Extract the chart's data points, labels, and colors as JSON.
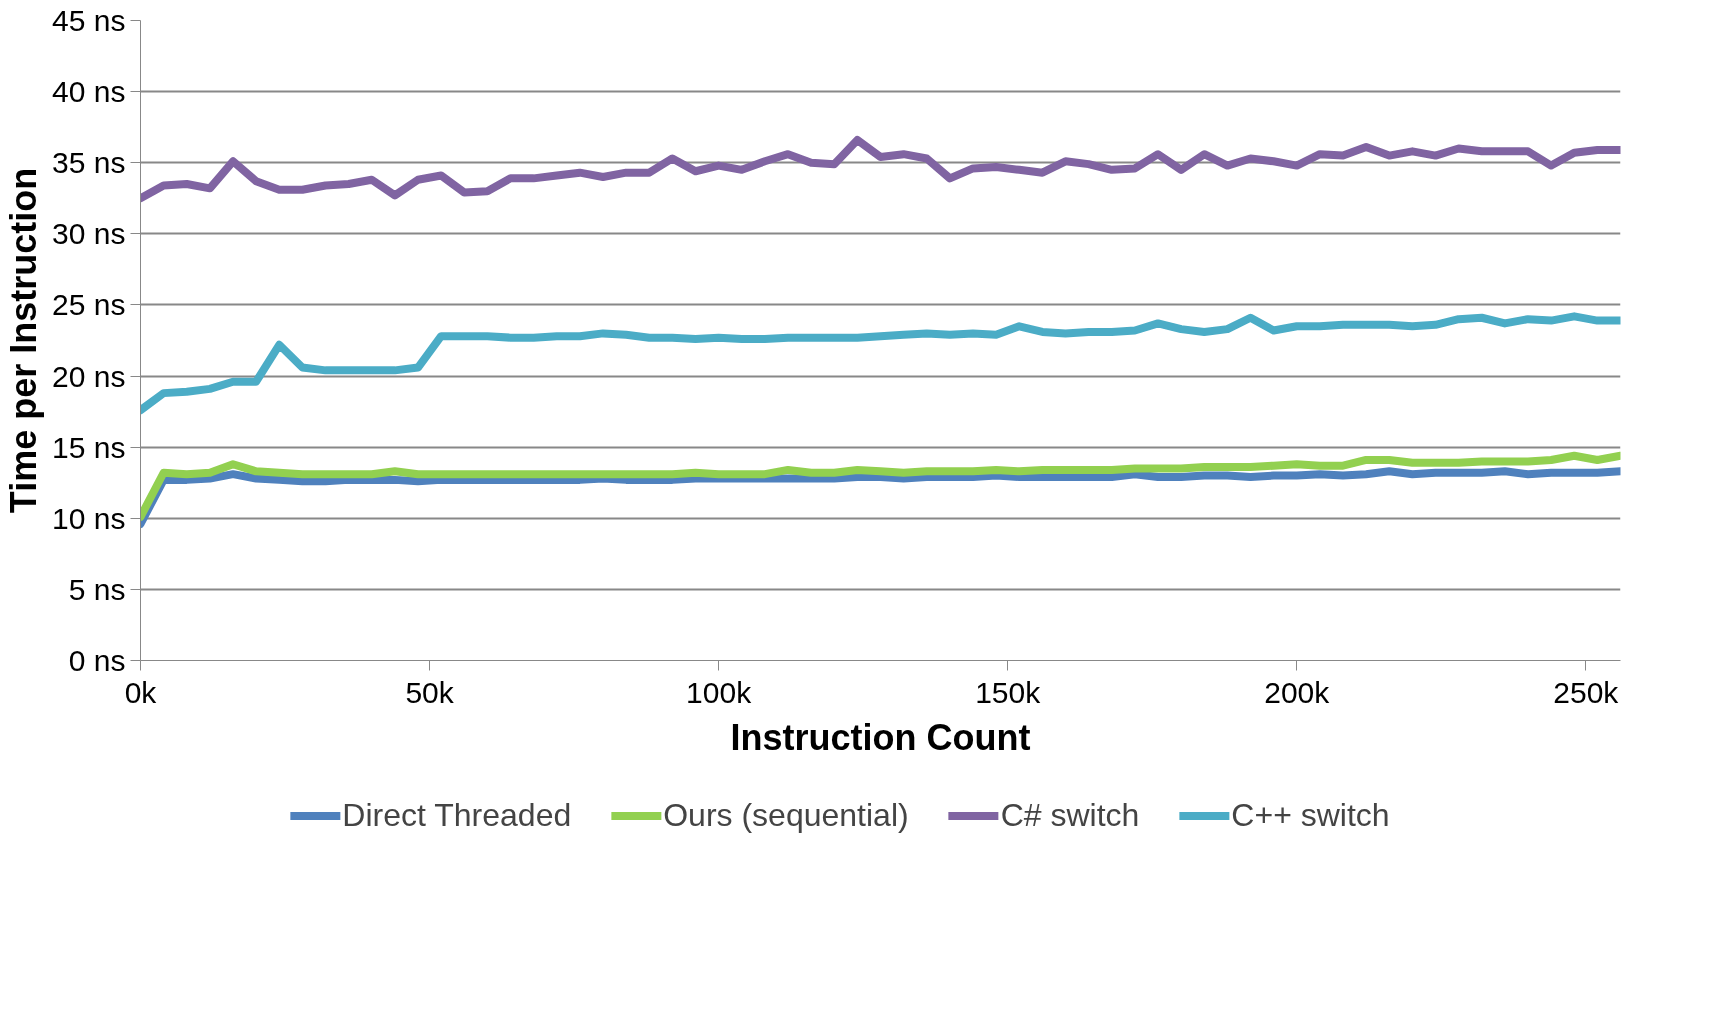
{
  "chart_data": {
    "type": "line",
    "xlabel": "Instruction Count",
    "ylabel": "Time per Instruction",
    "x": [
      0,
      4,
      8,
      12,
      16,
      20,
      24,
      28,
      32,
      36,
      40,
      44,
      48,
      52,
      56,
      60,
      64,
      68,
      72,
      76,
      80,
      84,
      88,
      92,
      96,
      100,
      104,
      108,
      112,
      116,
      120,
      124,
      128,
      132,
      136,
      140,
      144,
      148,
      152,
      156,
      160,
      164,
      168,
      172,
      176,
      180,
      184,
      188,
      192,
      196,
      200,
      204,
      208,
      212,
      216,
      220,
      224,
      228,
      232,
      236,
      240,
      244,
      248,
      252,
      256
    ],
    "xlim": [
      0,
      256
    ],
    "xticks": [
      {
        "value": 0,
        "label": "0k"
      },
      {
        "value": 50,
        "label": "50k"
      },
      {
        "value": 100,
        "label": "100k"
      },
      {
        "value": 150,
        "label": "150k"
      },
      {
        "value": 200,
        "label": "200k"
      },
      {
        "value": 250,
        "label": "250k"
      }
    ],
    "ylim": [
      0,
      45
    ],
    "yticks": [
      {
        "value": 0,
        "label": "0 ns"
      },
      {
        "value": 5,
        "label": "5 ns"
      },
      {
        "value": 10,
        "label": "10 ns"
      },
      {
        "value": 15,
        "label": "15 ns"
      },
      {
        "value": 20,
        "label": "20 ns"
      },
      {
        "value": 25,
        "label": "25 ns"
      },
      {
        "value": 30,
        "label": "30 ns"
      },
      {
        "value": 35,
        "label": "35 ns"
      },
      {
        "value": 40,
        "label": "40 ns"
      },
      {
        "value": 45,
        "label": "45 ns"
      }
    ],
    "grid": "y",
    "legend": "bottom",
    "marker": "none",
    "line_style": "solid",
    "series": [
      {
        "name": "Direct Threaded",
        "color": "#4f81bd",
        "values": [
          9.6,
          12.7,
          12.7,
          12.8,
          13.1,
          12.8,
          12.7,
          12.6,
          12.6,
          12.7,
          12.7,
          12.7,
          12.6,
          12.7,
          12.7,
          12.7,
          12.7,
          12.7,
          12.7,
          12.7,
          12.8,
          12.7,
          12.7,
          12.7,
          12.8,
          12.8,
          12.8,
          12.8,
          12.8,
          12.8,
          12.8,
          12.9,
          12.9,
          12.8,
          12.9,
          12.9,
          12.9,
          13.0,
          12.9,
          12.9,
          12.9,
          12.9,
          12.9,
          13.1,
          12.9,
          12.9,
          13.0,
          13.0,
          12.9,
          13.0,
          13.0,
          13.1,
          13.0,
          13.1,
          13.3,
          13.1,
          13.2,
          13.2,
          13.2,
          13.3,
          13.1,
          13.2,
          13.2,
          13.2,
          13.3
        ]
      },
      {
        "name": "Ours (sequential)",
        "color": "#92d050",
        "values": [
          10.1,
          13.2,
          13.1,
          13.2,
          13.8,
          13.3,
          13.2,
          13.1,
          13.1,
          13.1,
          13.1,
          13.3,
          13.1,
          13.1,
          13.1,
          13.1,
          13.1,
          13.1,
          13.1,
          13.1,
          13.1,
          13.1,
          13.1,
          13.1,
          13.2,
          13.1,
          13.1,
          13.1,
          13.4,
          13.2,
          13.2,
          13.4,
          13.3,
          13.2,
          13.3,
          13.3,
          13.3,
          13.4,
          13.3,
          13.4,
          13.4,
          13.4,
          13.4,
          13.5,
          13.5,
          13.5,
          13.6,
          13.6,
          13.6,
          13.7,
          13.8,
          13.7,
          13.7,
          14.1,
          14.1,
          13.9,
          13.9,
          13.9,
          14.0,
          14.0,
          14.0,
          14.1,
          14.4,
          14.1,
          14.4
        ]
      },
      {
        "name": "C# switch",
        "color": "#8064a2",
        "values": [
          32.5,
          33.4,
          33.5,
          33.2,
          35.1,
          33.7,
          33.1,
          33.1,
          33.4,
          33.5,
          33.8,
          32.7,
          33.8,
          34.1,
          32.9,
          33.0,
          33.9,
          33.9,
          34.1,
          34.3,
          34.0,
          34.3,
          34.3,
          35.3,
          34.4,
          34.8,
          34.5,
          35.1,
          35.6,
          35.0,
          34.9,
          36.6,
          35.4,
          35.6,
          35.3,
          33.9,
          34.6,
          34.7,
          34.5,
          34.3,
          35.1,
          34.9,
          34.5,
          34.6,
          35.6,
          34.5,
          35.6,
          34.8,
          35.3,
          35.1,
          34.8,
          35.6,
          35.5,
          36.1,
          35.5,
          35.8,
          35.5,
          36.0,
          35.8,
          35.8,
          35.8,
          34.8,
          35.7,
          35.9,
          35.9
        ]
      },
      {
        "name": "C++ switch",
        "color": "#4bacc6",
        "values": [
          17.6,
          18.8,
          18.9,
          19.1,
          19.6,
          19.6,
          22.2,
          20.6,
          20.4,
          20.4,
          20.4,
          20.4,
          20.6,
          22.8,
          22.8,
          22.8,
          22.7,
          22.7,
          22.8,
          22.8,
          23.0,
          22.9,
          22.7,
          22.7,
          22.6,
          22.7,
          22.6,
          22.6,
          22.7,
          22.7,
          22.7,
          22.7,
          22.8,
          22.9,
          23.0,
          22.9,
          23.0,
          22.9,
          23.5,
          23.1,
          23.0,
          23.1,
          23.1,
          23.2,
          23.7,
          23.3,
          23.1,
          23.3,
          24.1,
          23.2,
          23.5,
          23.5,
          23.6,
          23.6,
          23.6,
          23.5,
          23.6,
          24.0,
          24.1,
          23.7,
          24.0,
          23.9,
          24.2,
          23.9,
          23.9
        ]
      }
    ]
  }
}
